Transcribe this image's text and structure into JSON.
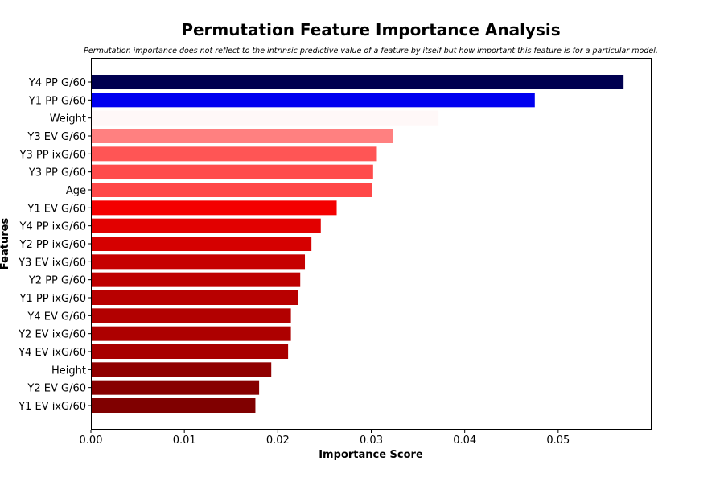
{
  "chart_data": {
    "type": "bar",
    "orientation": "horizontal",
    "title": "Permutation Feature Importance Analysis",
    "subtitle": "Permutation importance does not reflect to the intrinsic predictive value of a feature by itself but how important this feature is for a particular model.",
    "xlabel": "Importance Score",
    "ylabel": "Features",
    "xlim": [
      0,
      0.06
    ],
    "xticks": [
      0.0,
      0.01,
      0.02,
      0.03,
      0.04,
      0.05
    ],
    "xtick_labels": [
      "0.00",
      "0.01",
      "0.02",
      "0.03",
      "0.04",
      "0.05"
    ],
    "grid": false,
    "legend": false,
    "categories": [
      "Y4 PP G/60",
      "Y1 PP G/60",
      "Weight",
      "Y3 EV G/60",
      "Y3 PP ixG/60",
      "Y3 PP G/60",
      "Age",
      "Y1 EV G/60",
      "Y4 PP ixG/60",
      "Y2 PP ixG/60",
      "Y3 EV ixG/60",
      "Y2 PP G/60",
      "Y1 PP ixG/60",
      "Y4 EV G/60",
      "Y2 EV ixG/60",
      "Y4 EV ixG/60",
      "Height",
      "Y2 EV G/60",
      "Y1 EV ixG/60"
    ],
    "values": [
      0.057,
      0.0475,
      0.0372,
      0.0323,
      0.0306,
      0.0302,
      0.0301,
      0.0263,
      0.0246,
      0.0236,
      0.0229,
      0.0224,
      0.0222,
      0.0214,
      0.0214,
      0.0211,
      0.0193,
      0.018,
      0.0176
    ],
    "colors": [
      "#000050",
      "#0000ef",
      "#fff8f8",
      "#ff8080",
      "#ff5555",
      "#ff4b4b",
      "#ff4848",
      "#f40000",
      "#e20000",
      "#d50000",
      "#c60000",
      "#be0000",
      "#b80000",
      "#b20000",
      "#ad0000",
      "#a80000",
      "#900000",
      "#870000",
      "#800000"
    ]
  }
}
